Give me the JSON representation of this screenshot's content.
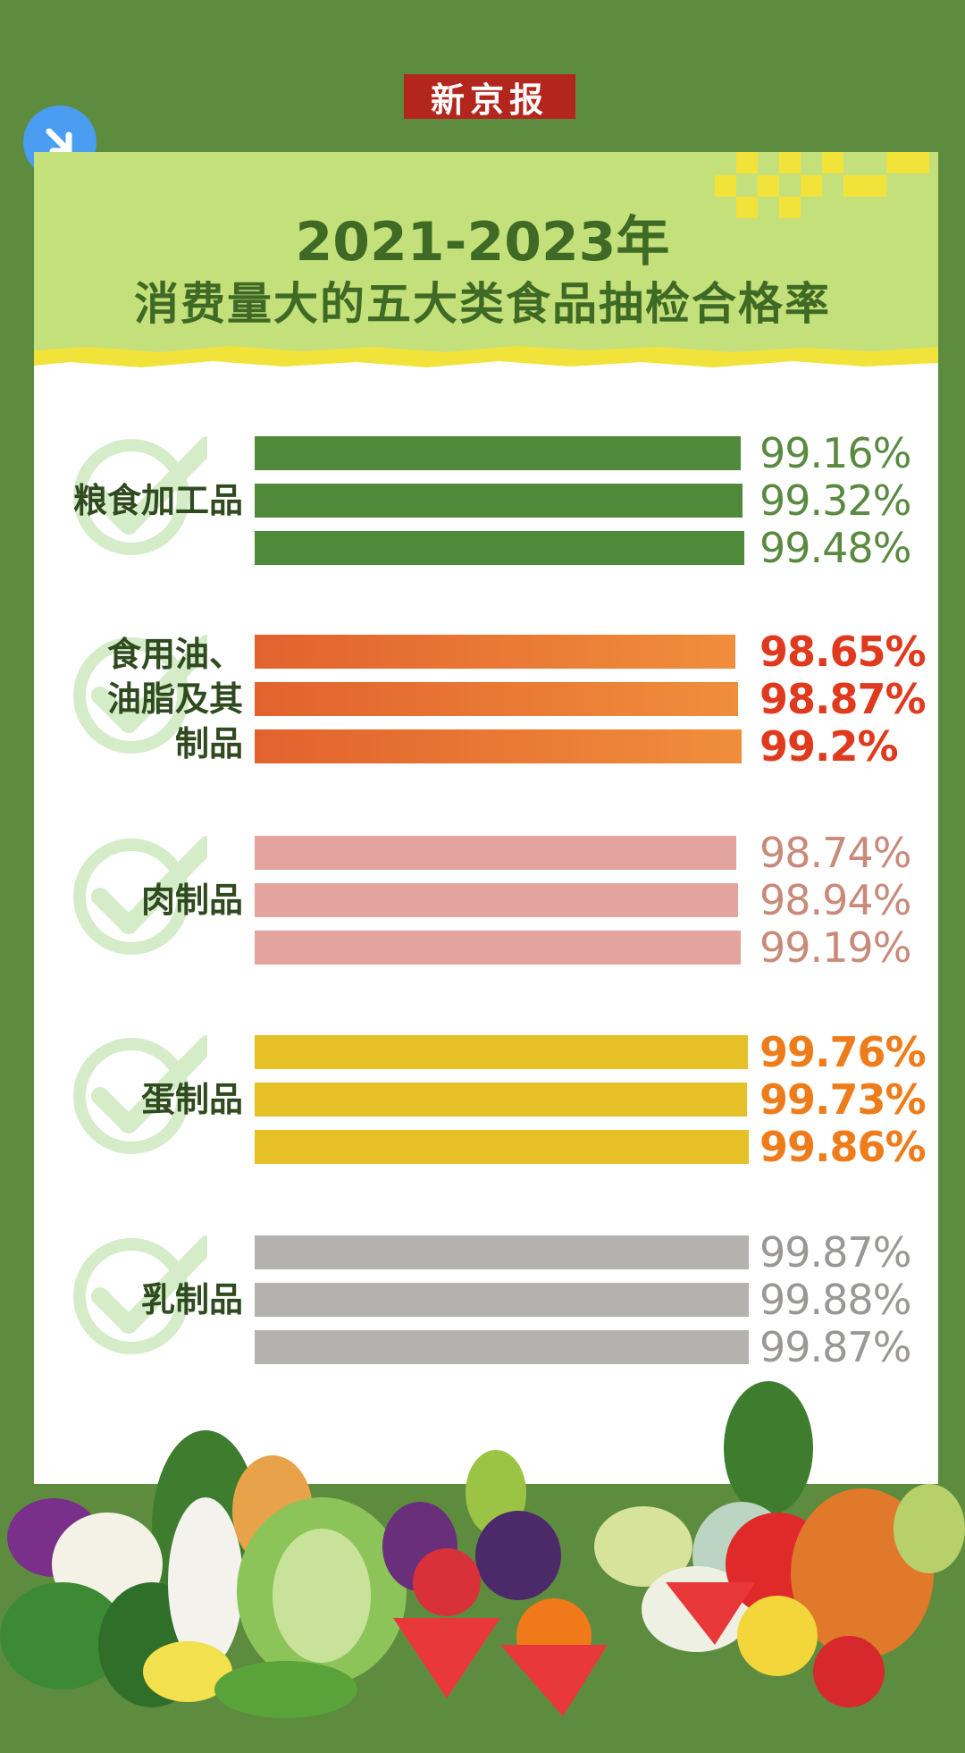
{
  "logo": "新京报",
  "title": "2021-2023年",
  "subtitle": "消费量大的五大类食品抽检合格率",
  "chart_data": {
    "type": "bar",
    "orientation": "horizontal",
    "title": "2021-2023年 消费量大的五大类食品抽检合格率",
    "unit": "%",
    "categories": [
      "粮食加工品",
      "食用油、油脂及其制品",
      "肉制品",
      "蛋制品",
      "乳制品"
    ],
    "groups": [
      {
        "label_lines": [
          "粮食加工品"
        ],
        "values": [
          99.16,
          99.32,
          99.48
        ],
        "labels": [
          "99.16%",
          "99.32%",
          "99.48%"
        ],
        "bar_color": "#4f8a3a",
        "bar_color2": "#4f8a3a",
        "text_color": "#5a8a40"
      },
      {
        "label_lines": [
          "食用油、",
          "油脂及其",
          "制品"
        ],
        "values": [
          98.65,
          98.87,
          99.2
        ],
        "labels": [
          "98.65%",
          "98.87%",
          "99.2%"
        ],
        "bar_color": "#e2622e",
        "bar_color2": "#f08e3c",
        "text_color": "#e03a1e"
      },
      {
        "label_lines": [
          "肉制品"
        ],
        "values": [
          98.74,
          98.94,
          99.19
        ],
        "labels": [
          "98.74%",
          "98.94%",
          "99.19%"
        ],
        "bar_color": "#e2a49c",
        "bar_color2": "#e2a49c",
        "text_color": "#c98a7a"
      },
      {
        "label_lines": [
          "蛋制品"
        ],
        "values": [
          99.76,
          99.73,
          99.86
        ],
        "labels": [
          "99.76%",
          "99.73%",
          "99.86%"
        ],
        "bar_color": "#e6c027",
        "bar_color2": "#e6c027",
        "text_color": "#ef7c1a"
      },
      {
        "label_lines": [
          "乳制品"
        ],
        "values": [
          99.87,
          99.88,
          99.87
        ],
        "labels": [
          "99.87%",
          "99.88%",
          "99.87%"
        ],
        "bar_color": "#b4b2ae",
        "bar_color2": "#b4b2ae",
        "text_color": "#9a9894"
      }
    ]
  }
}
